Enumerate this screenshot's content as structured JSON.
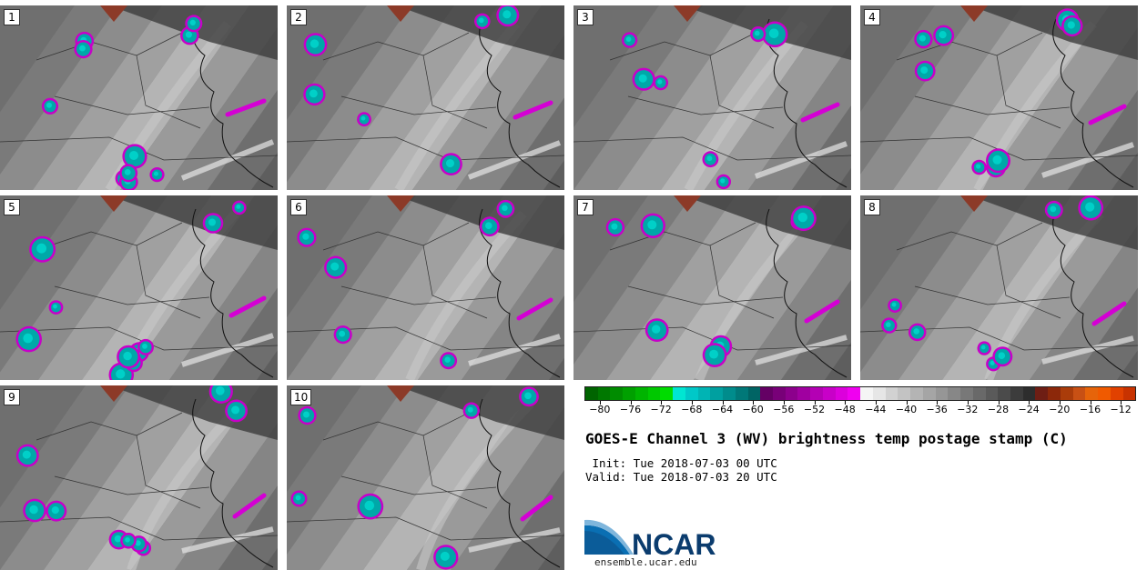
{
  "panels": [
    {
      "label": "1"
    },
    {
      "label": "2"
    },
    {
      "label": "3"
    },
    {
      "label": "4"
    },
    {
      "label": "5"
    },
    {
      "label": "6"
    },
    {
      "label": "7"
    },
    {
      "label": "8"
    },
    {
      "label": "9"
    },
    {
      "label": "10"
    }
  ],
  "colorbar": {
    "colors": [
      "#006400",
      "#007800",
      "#008c00",
      "#00a000",
      "#00b400",
      "#00c800",
      "#00dc00",
      "#00e6d2",
      "#00c8c8",
      "#00b4b4",
      "#00a0a0",
      "#008c8c",
      "#007878",
      "#006464",
      "#640064",
      "#780078",
      "#8c008c",
      "#a000a0",
      "#b400b4",
      "#c800c8",
      "#dc00dc",
      "#f000f0",
      "#f5f5f5",
      "#e6e6e6",
      "#d2d2d2",
      "#c3c3c3",
      "#b4b4b4",
      "#a5a5a5",
      "#969696",
      "#878787",
      "#787878",
      "#696969",
      "#5a5a5a",
      "#4b4b4b",
      "#3c3c3c",
      "#2d2d2d",
      "#6e1e14",
      "#8c280a",
      "#aa3c0a",
      "#c85014",
      "#e6640a",
      "#f05a00",
      "#e14100",
      "#c83200"
    ],
    "tick_labels": [
      "−80",
      "−76",
      "−72",
      "−68",
      "−64",
      "−60",
      "−56",
      "−52",
      "−48",
      "−44",
      "−40",
      "−36",
      "−32",
      "−28",
      "−24",
      "−20",
      "−16",
      "−12"
    ],
    "tick_values": [
      -80,
      -76,
      -72,
      -68,
      -64,
      -60,
      -56,
      -52,
      -48,
      -44,
      -40,
      -36,
      -32,
      -28,
      -24,
      -20,
      -16,
      -12
    ],
    "range": [
      -82,
      -10
    ]
  },
  "title": "GOES-E Channel 3 (WV) brightness temp postage stamp (C)",
  "init": " Init: Tue 2018-07-03 00 UTC",
  "valid": "Valid: Tue 2018-07-03 20 UTC",
  "logo_text": "NCAR",
  "url": "ensemble.ucar.edu"
}
